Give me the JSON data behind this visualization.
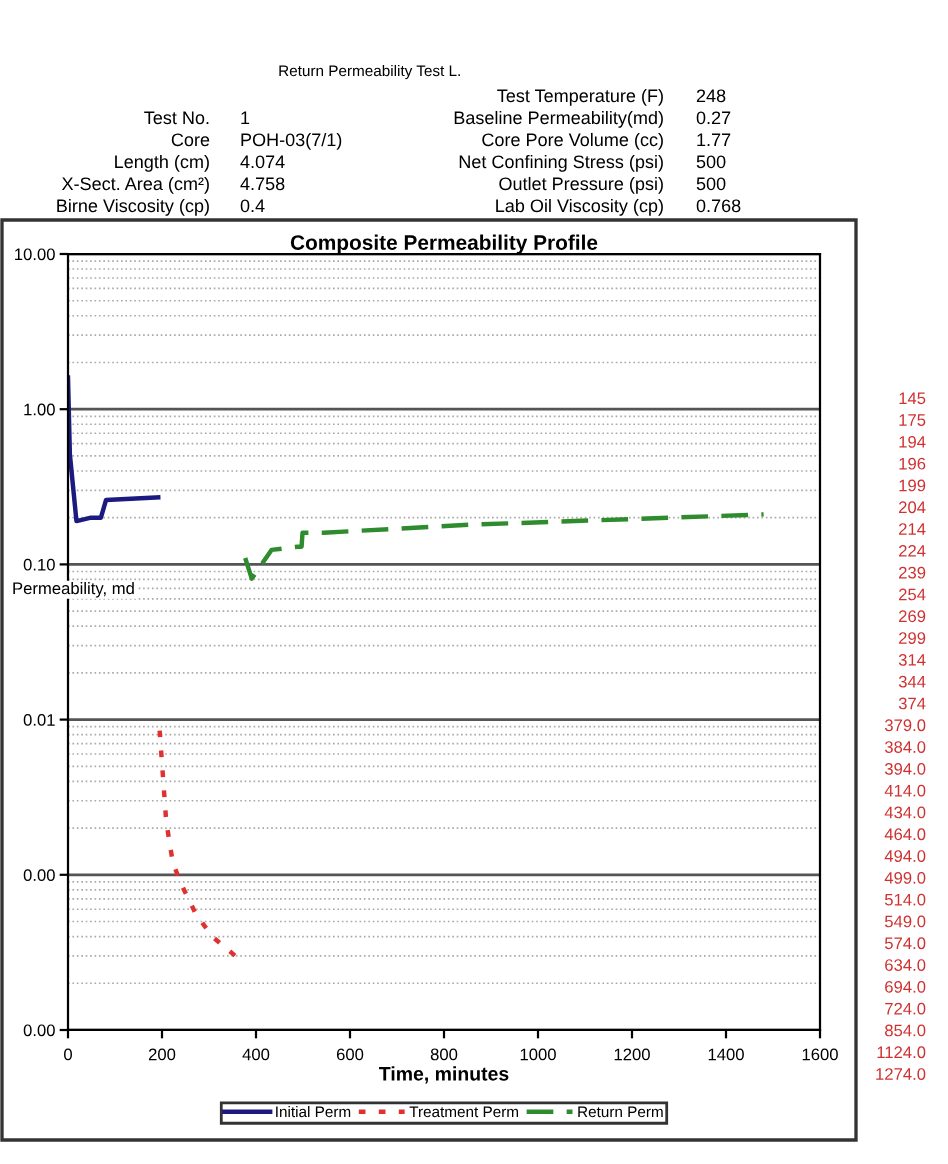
{
  "chart_data": {
    "type": "line",
    "title": "Return Permeability Test L.",
    "subtitle": "Composite Permeability Profile",
    "xlabel": "Time, minutes",
    "ylabel": "Permeability, md",
    "log": "y",
    "xlim": [
      0,
      1600
    ],
    "xticks": [
      0,
      200,
      400,
      600,
      800,
      1000,
      1200,
      1400,
      1600
    ],
    "ylim": [
      0.0001,
      10
    ],
    "yticks": [
      {
        "value": 0.0001,
        "label": "0.00"
      },
      {
        "value": 0.001,
        "label": "0.00"
      },
      {
        "value": 0.01,
        "label": "0.01"
      },
      {
        "value": 0.1,
        "label": "0.10"
      },
      {
        "value": 1,
        "label": "1.00"
      },
      {
        "value": 10,
        "label": "10.00"
      }
    ],
    "grid": "y",
    "legend": "bottom",
    "series": [
      {
        "name": "Initial Perm",
        "color": "#1a1a80",
        "line_style": "solid",
        "x": [
          0,
          4,
          18,
          49,
          70,
          72,
          81,
          192
        ],
        "values": [
          1.6,
          0.51,
          0.19,
          0.2,
          0.2,
          0.21,
          0.26,
          0.27
        ]
      },
      {
        "name": "Treatment Perm",
        "color": "#e03030",
        "line_style": "dotted",
        "x": [
          195,
          209,
          223,
          240,
          272,
          307,
          356
        ],
        "values": [
          0.0085,
          0.0022,
          0.0012,
          0.00088,
          0.00056,
          0.0004,
          0.0003
        ]
      },
      {
        "name": "Return Perm",
        "color": "#2e8b2e",
        "line_style": "dashed",
        "x": [
          377,
          391,
          433,
          489,
          497,
          499,
          544,
          852,
          1480
        ],
        "values": [
          0.11,
          0.081,
          0.124,
          0.13,
          0.13,
          0.16,
          0.16,
          0.18,
          0.21
        ]
      }
    ],
    "annotations": [
      "Test No.",
      "1",
      "Core",
      "POH-03(7/1)",
      "Length (cm)",
      "4.074",
      "X-Sect. Area (cm²)",
      "4.758",
      "Birne Viscosity (cp)",
      "0.4",
      "Test Temperature (F)",
      "248",
      "Baseline Permeability(md)",
      "0.27",
      "Core Pore Volume (cc)",
      "1.77",
      "Net Confining Stress (psi)",
      "500",
      "Outlet Pressure (psi)",
      "500",
      "Lab Oil Viscosity (cp)",
      "0.768",
      "145",
      "175",
      "194",
      "196",
      "199",
      "204",
      "214",
      "224",
      "239",
      "254",
      "269",
      "299",
      "314",
      "344",
      "374",
      "379.0",
      "384.0",
      "394.0",
      "414.0",
      "434.0",
      "464.0",
      "494.0",
      "499.0",
      "514.0",
      "549.0",
      "574.0",
      "634.0",
      "694.0",
      "724.0",
      "854.0",
      "1124.0",
      "1274.0"
    ]
  }
}
